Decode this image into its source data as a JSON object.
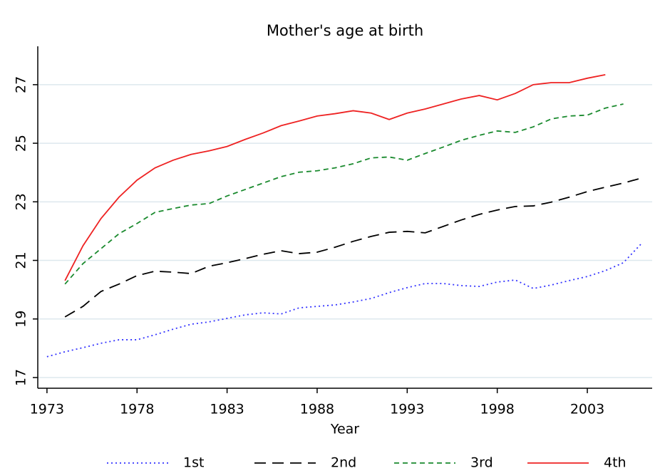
{
  "chart_data": {
    "type": "line",
    "title": "Mother's age at birth",
    "x_label": "Year",
    "x": [
      1973,
      1974,
      1975,
      1976,
      1977,
      1978,
      1979,
      1980,
      1981,
      1982,
      1983,
      1984,
      1985,
      1986,
      1987,
      1988,
      1989,
      1990,
      1991,
      1992,
      1993,
      1994,
      1995,
      1996,
      1997,
      1998,
      1999,
      2000,
      2001,
      2002,
      2003,
      2004,
      2005,
      2006
    ],
    "series": [
      {
        "name": "1st",
        "color": "#3333ff",
        "dash": "dotted",
        "values": [
          17.71,
          17.88,
          18.02,
          18.17,
          18.29,
          18.29,
          18.46,
          18.65,
          18.82,
          18.9,
          19.02,
          19.14,
          19.21,
          19.17,
          19.38,
          19.43,
          19.48,
          19.58,
          19.7,
          19.9,
          20.07,
          20.21,
          20.21,
          20.14,
          20.11,
          20.26,
          20.33,
          20.04,
          20.16,
          20.31,
          20.45,
          20.65,
          20.92,
          21.57
        ]
      },
      {
        "name": "2nd",
        "color": "#000000",
        "dash": "longdash",
        "values": [
          null,
          19.07,
          19.43,
          19.94,
          20.19,
          20.48,
          20.63,
          20.6,
          20.55,
          20.8,
          20.92,
          21.06,
          21.21,
          21.33,
          21.23,
          21.28,
          21.45,
          21.65,
          21.82,
          21.96,
          21.99,
          21.94,
          22.16,
          22.38,
          22.57,
          22.72,
          22.84,
          22.86,
          22.99,
          23.16,
          23.35,
          23.5,
          23.64,
          23.81
        ]
      },
      {
        "name": "3rd",
        "color": "#1a8a2e",
        "dash": "dashed",
        "values": [
          null,
          20.19,
          20.89,
          21.4,
          21.91,
          22.26,
          22.64,
          22.77,
          22.89,
          22.94,
          23.2,
          23.42,
          23.64,
          23.86,
          24.01,
          24.06,
          24.16,
          24.3,
          24.5,
          24.53,
          24.42,
          24.65,
          24.87,
          25.1,
          25.27,
          25.42,
          25.37,
          25.56,
          25.83,
          25.93,
          25.96,
          26.2,
          26.34,
          null
        ]
      },
      {
        "name": "4th",
        "color": "#ee2222",
        "dash": "solid",
        "values": [
          null,
          20.31,
          21.5,
          22.43,
          23.16,
          23.74,
          24.16,
          24.42,
          24.62,
          24.74,
          24.89,
          25.13,
          25.35,
          25.6,
          25.76,
          25.93,
          26.01,
          26.11,
          26.03,
          25.81,
          26.03,
          26.17,
          26.34,
          26.51,
          26.63,
          26.48,
          26.7,
          27.0,
          27.07,
          27.07,
          27.22,
          27.34,
          null,
          null
        ]
      }
    ],
    "xlim": [
      1972.49,
      2006.6
    ],
    "ylim": [
      16.635,
      28.31
    ],
    "xticks": [
      1973,
      1978,
      1983,
      1988,
      1993,
      1998,
      2003
    ],
    "yticks": [
      17,
      19,
      21,
      23,
      25,
      27
    ],
    "grid": true,
    "legend": "bottom"
  }
}
